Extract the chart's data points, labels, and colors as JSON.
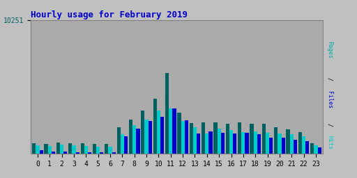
{
  "title": "Hourly usage for February 2019",
  "title_color": "#0000cc",
  "title_fontsize": 9,
  "hours": [
    0,
    1,
    2,
    3,
    4,
    5,
    6,
    7,
    8,
    9,
    10,
    11,
    12,
    13,
    14,
    15,
    16,
    17,
    18,
    19,
    20,
    21,
    22,
    23
  ],
  "pages": [
    820,
    750,
    870,
    820,
    820,
    780,
    780,
    2050,
    2650,
    3350,
    4250,
    6200,
    3150,
    2350,
    2400,
    2400,
    2300,
    2400,
    2300,
    2300,
    2050,
    1900,
    1700,
    820
  ],
  "hits": [
    680,
    600,
    700,
    650,
    600,
    570,
    560,
    1500,
    2200,
    2650,
    3350,
    3500,
    2550,
    2050,
    1550,
    1950,
    1850,
    1700,
    1750,
    1650,
    1550,
    1500,
    1350,
    670
  ],
  "files": [
    280,
    180,
    180,
    140,
    130,
    130,
    110,
    1350,
    1950,
    2550,
    2850,
    3500,
    2600,
    1550,
    1750,
    1650,
    1550,
    1650,
    1500,
    1250,
    1250,
    1100,
    1000,
    480
  ],
  "pages_color": "#006060",
  "hits_color": "#00cccc",
  "files_color": "#0000cc",
  "bg_color": "#c0c0c0",
  "plot_bg_color": "#aaaaaa",
  "grid_color": "#bbbbbb",
  "border_color": "#808080",
  "ytick_label": "10251",
  "ytick_color": "#006060",
  "ylim_max": 10251,
  "bar_width": 0.3,
  "right_label_pages": "Pages",
  "right_label_sep": " / ",
  "right_label_files": "Files",
  "right_label_hits": "Hits",
  "right_label_color_pages": "#00aaaa",
  "right_label_color_files": "#0000cc",
  "right_label_color_hits": "#00cccc",
  "xtick_fontsize": 7,
  "ytick_fontsize": 7
}
